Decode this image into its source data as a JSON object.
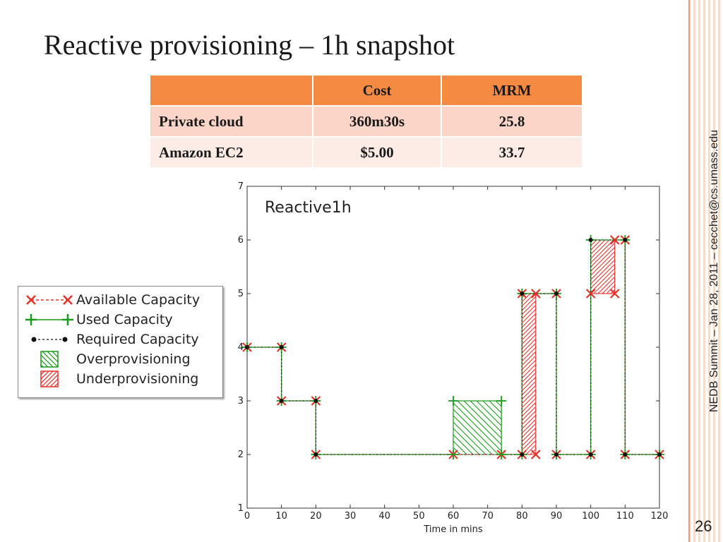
{
  "slide": {
    "title": "Reactive provisioning – 1h snapshot",
    "footer": "NEDB Summit – Jan 28, 2011 – cecchet@cs.umass.edu",
    "page_number": "26"
  },
  "table": {
    "headers": [
      "",
      "Cost",
      "MRM"
    ],
    "rows": [
      [
        "Private cloud",
        "360m30s",
        "25.8"
      ],
      [
        "Amazon EC2",
        "$5.00",
        "33.7"
      ]
    ]
  },
  "legend": {
    "items": [
      {
        "label": "Available Capacity",
        "color": "#e8302a"
      },
      {
        "label": "Used Capacity",
        "color": "#1a9a1a"
      },
      {
        "label": "Required Capacity",
        "color": "#111111"
      },
      {
        "label": "Overprovisioning",
        "color": "#1a9a1a"
      },
      {
        "label": "Underprovisioning",
        "color": "#e8302a"
      }
    ]
  },
  "chart_data": {
    "type": "line",
    "title": "Reactive1h",
    "xlabel": "Time in mins",
    "ylabel": "",
    "xlim": [
      0,
      120
    ],
    "ylim": [
      1,
      7
    ],
    "xticks": [
      "0",
      "10",
      "20",
      "30",
      "40",
      "50",
      "60",
      "70",
      "80",
      "90",
      "100",
      "110",
      "120"
    ],
    "yticks": [
      "1",
      "2",
      "3",
      "4",
      "5",
      "6",
      "7"
    ],
    "grid": false,
    "series": [
      {
        "name": "Available Capacity",
        "color": "#e8302a",
        "points": [
          [
            0,
            4
          ],
          [
            10,
            4
          ],
          [
            10,
            3
          ],
          [
            20,
            3
          ],
          [
            20,
            2
          ],
          [
            60,
            2
          ],
          [
            74,
            2
          ],
          [
            80,
            2
          ],
          [
            84,
            2
          ],
          [
            84,
            5
          ],
          [
            80,
            5
          ],
          [
            90,
            5
          ],
          [
            90,
            2
          ],
          [
            100,
            2
          ],
          [
            100,
            5
          ],
          [
            107,
            5
          ],
          [
            107,
            6
          ],
          [
            110,
            6
          ],
          [
            110,
            2
          ],
          [
            120,
            2
          ]
        ]
      },
      {
        "name": "Used Capacity",
        "color": "#1a9a1a",
        "points": [
          [
            0,
            4
          ],
          [
            10,
            4
          ],
          [
            10,
            3
          ],
          [
            20,
            3
          ],
          [
            20,
            2
          ],
          [
            60,
            2
          ],
          [
            60,
            3
          ],
          [
            74,
            3
          ],
          [
            74,
            2
          ],
          [
            80,
            2
          ],
          [
            80,
            5
          ],
          [
            90,
            5
          ],
          [
            90,
            2
          ],
          [
            100,
            2
          ],
          [
            100,
            6
          ],
          [
            110,
            6
          ],
          [
            110,
            2
          ],
          [
            120,
            2
          ]
        ]
      },
      {
        "name": "Required Capacity",
        "color": "#111111",
        "points": [
          [
            0,
            4
          ],
          [
            10,
            4
          ],
          [
            10,
            3
          ],
          [
            20,
            3
          ],
          [
            20,
            2
          ],
          [
            80,
            2
          ],
          [
            80,
            5
          ],
          [
            90,
            5
          ],
          [
            90,
            2
          ],
          [
            100,
            2
          ],
          [
            100,
            6
          ],
          [
            110,
            6
          ],
          [
            110,
            2
          ],
          [
            120,
            2
          ]
        ]
      }
    ],
    "overprovisioning": [
      {
        "x0": 60,
        "x1": 74,
        "y0": 2,
        "y1": 3
      }
    ],
    "underprovisioning": [
      {
        "x0": 80,
        "x1": 84,
        "y0": 2,
        "y1": 5
      },
      {
        "x0": 100,
        "x1": 107,
        "y0": 5,
        "y1": 6
      }
    ]
  }
}
